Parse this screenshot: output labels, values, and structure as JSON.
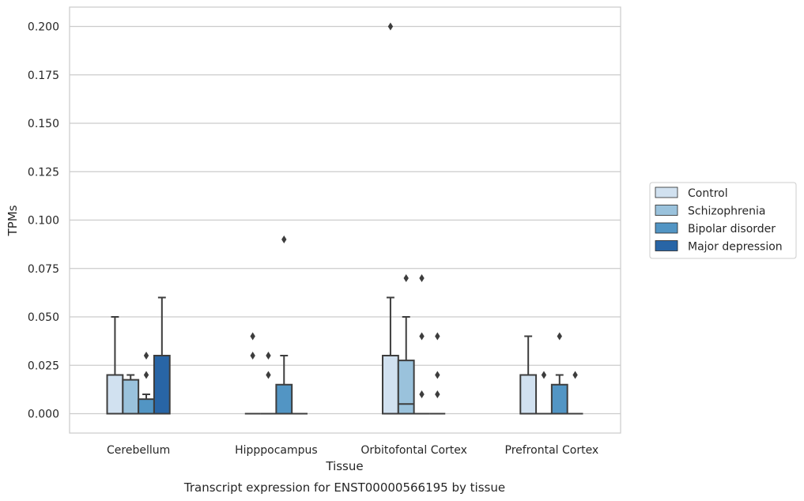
{
  "chart_data": {
    "type": "box",
    "title": "Transcript expression for ENST00000566195 by tissue",
    "xlabel": "Tissue",
    "ylabel": "TPMs",
    "ylim": [
      -0.01,
      0.21
    ],
    "yticks": [
      "0.000",
      "0.025",
      "0.050",
      "0.075",
      "0.100",
      "0.125",
      "0.150",
      "0.175",
      "0.200"
    ],
    "grid": true,
    "legend_position": "right",
    "categories": [
      "Cerebellum",
      "Hipppocampus",
      "Orbitofontal Cortex",
      "Prefrontal Cortex"
    ],
    "series": [
      {
        "name": "Control",
        "color": "#d1e1f0",
        "boxes": [
          {
            "q1": 0,
            "median": 0,
            "q3": 0.02,
            "whisker_low": 0,
            "whisker_high": 0.05,
            "outliers": []
          },
          {
            "q1": 0,
            "median": 0,
            "q3": 0,
            "whisker_low": 0,
            "whisker_high": 0,
            "outliers": [
              0.03,
              0.04
            ]
          },
          {
            "q1": 0,
            "median": 0,
            "q3": 0.03,
            "whisker_low": 0,
            "whisker_high": 0.06,
            "outliers": [
              0.2
            ]
          },
          {
            "q1": 0,
            "median": 0,
            "q3": 0.02,
            "whisker_low": 0,
            "whisker_high": 0.04,
            "outliers": []
          }
        ]
      },
      {
        "name": "Schizophrenia",
        "color": "#9ac2dc",
        "boxes": [
          {
            "q1": 0,
            "median": 0,
            "q3": 0.0175,
            "whisker_low": 0,
            "whisker_high": 0.02,
            "outliers": []
          },
          {
            "q1": 0,
            "median": 0,
            "q3": 0,
            "whisker_low": 0,
            "whisker_high": 0,
            "outliers": [
              0.02,
              0.03
            ]
          },
          {
            "q1": 0,
            "median": 0.005,
            "q3": 0.0275,
            "whisker_low": 0,
            "whisker_high": 0.05,
            "outliers": [
              0.07
            ]
          },
          {
            "q1": 0,
            "median": 0,
            "q3": 0,
            "whisker_low": 0,
            "whisker_high": 0,
            "outliers": [
              0.02
            ]
          }
        ]
      },
      {
        "name": "Bipolar disorder",
        "color": "#5295c4",
        "boxes": [
          {
            "q1": 0,
            "median": 0,
            "q3": 0.0075,
            "whisker_low": 0,
            "whisker_high": 0.01,
            "outliers": [
              0.02,
              0.03
            ]
          },
          {
            "q1": 0,
            "median": 0,
            "q3": 0.015,
            "whisker_low": 0,
            "whisker_high": 0.03,
            "outliers": [
              0.09
            ]
          },
          {
            "q1": 0,
            "median": 0,
            "q3": 0,
            "whisker_low": 0,
            "whisker_high": 0,
            "outliers": [
              0.01,
              0.04,
              0.07
            ]
          },
          {
            "q1": 0,
            "median": 0,
            "q3": 0.015,
            "whisker_low": 0,
            "whisker_high": 0.02,
            "outliers": [
              0.04
            ]
          }
        ]
      },
      {
        "name": "Major depression",
        "color": "#2865a6",
        "boxes": [
          {
            "q1": 0,
            "median": 0,
            "q3": 0.03,
            "whisker_low": 0,
            "whisker_high": 0.06,
            "outliers": []
          },
          {
            "q1": 0,
            "median": 0,
            "q3": 0,
            "whisker_low": 0,
            "whisker_high": 0,
            "outliers": []
          },
          {
            "q1": 0,
            "median": 0,
            "q3": 0,
            "whisker_low": 0,
            "whisker_high": 0,
            "outliers": [
              0.01,
              0.02,
              0.04
            ]
          },
          {
            "q1": 0,
            "median": 0,
            "q3": 0,
            "whisker_low": 0,
            "whisker_high": 0,
            "outliers": [
              0.02
            ]
          }
        ]
      }
    ]
  }
}
